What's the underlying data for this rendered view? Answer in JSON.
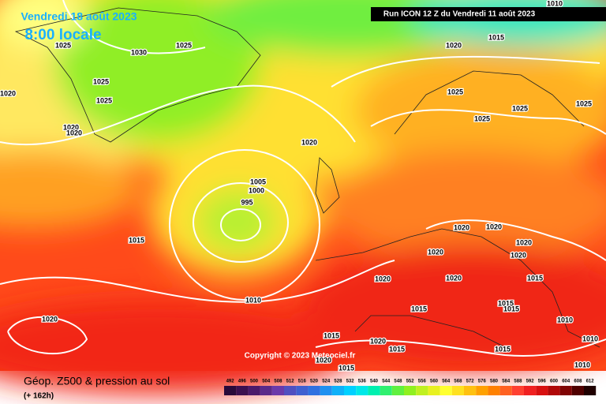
{
  "header": {
    "date": "Vendredi 18 août 2023",
    "time": "8:00 locale",
    "run": "Run ICON 12 Z du Vendredi 11 août 2023"
  },
  "isobar_labels": [
    "1025",
    "1030",
    "1025",
    "1025",
    "1025",
    "1020",
    "1020",
    "1020",
    "1020",
    "1005",
    "1000",
    "995",
    "1015",
    "1010",
    "1020",
    "1020",
    "1015",
    "1010",
    "1025",
    "1025",
    "1025",
    "1025",
    "1020",
    "1020",
    "1020",
    "1020",
    "1020",
    "1020",
    "1020",
    "1015",
    "1015",
    "1015",
    "1015",
    "1010",
    "1010",
    "1020",
    "1015",
    "1015",
    "1015",
    "1010",
    "1015",
    "1020"
  ],
  "copyright": "Copyright © 2023 Meteociel.fr",
  "footer": {
    "title": "Géop. Z500 & pression au sol",
    "lead": "(+ 162h)"
  },
  "scale": [
    {
      "label": "492",
      "color": "#2a0a3a"
    },
    {
      "label": "496",
      "color": "#3c1050"
    },
    {
      "label": "500",
      "color": "#4b1a6a"
    },
    {
      "label": "504",
      "color": "#5a2a8a"
    },
    {
      "label": "508",
      "color": "#6a3aaa"
    },
    {
      "label": "512",
      "color": "#5050c0"
    },
    {
      "label": "516",
      "color": "#4060d0"
    },
    {
      "label": "520",
      "color": "#3070e0"
    },
    {
      "label": "524",
      "color": "#2090f0"
    },
    {
      "label": "528",
      "color": "#10b0f8"
    },
    {
      "label": "532",
      "color": "#00d0ff"
    },
    {
      "label": "536",
      "color": "#00e8e8"
    },
    {
      "label": "540",
      "color": "#00f0b0"
    },
    {
      "label": "544",
      "color": "#30f070"
    },
    {
      "label": "548",
      "color": "#60f040"
    },
    {
      "label": "552",
      "color": "#90f020"
    },
    {
      "label": "556",
      "color": "#c0f020"
    },
    {
      "label": "560",
      "color": "#e8f020"
    },
    {
      "label": "564",
      "color": "#ffff30"
    },
    {
      "label": "568",
      "color": "#ffe020"
    },
    {
      "label": "572",
      "color": "#ffc010"
    },
    {
      "label": "576",
      "color": "#ffa000"
    },
    {
      "label": "580",
      "color": "#ff8000"
    },
    {
      "label": "584",
      "color": "#ff6020"
    },
    {
      "label": "588",
      "color": "#ff4030"
    },
    {
      "label": "592",
      "color": "#f02020"
    },
    {
      "label": "596",
      "color": "#d81010"
    },
    {
      "label": "600",
      "color": "#b00808"
    },
    {
      "label": "604",
      "color": "#800404"
    },
    {
      "label": "608",
      "color": "#500000"
    },
    {
      "label": "612",
      "color": "#200000"
    }
  ]
}
